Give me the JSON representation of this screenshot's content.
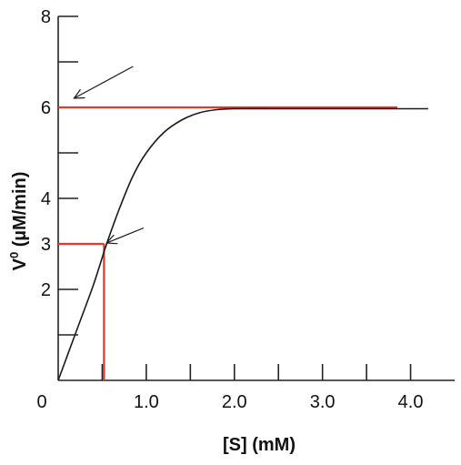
{
  "chart_data": {
    "type": "line",
    "title": "",
    "xlabel": "[S]  (mM)",
    "ylabel_main": "V",
    "ylabel_sup": "0",
    "ylabel_rest": " (µM/min)",
    "xlim": [
      0,
      4.5
    ],
    "ylim": [
      0,
      8
    ],
    "grid": false,
    "legend": "none",
    "x_ticks": [
      0,
      0.5,
      1.0,
      1.5,
      2.0,
      2.5,
      3.0,
      3.5,
      4.0
    ],
    "x_tick_labels": [
      {
        "value": 0,
        "label": "0"
      },
      {
        "value": 1.0,
        "label": "1.0"
      },
      {
        "value": 2.0,
        "label": "2.0"
      },
      {
        "value": 3.0,
        "label": "3.0"
      },
      {
        "value": 4.0,
        "label": "4.0"
      }
    ],
    "y_ticks": [
      1,
      2,
      3,
      4,
      5,
      6,
      7,
      8
    ],
    "y_tick_labels": [
      {
        "value": 2,
        "label": "2"
      },
      {
        "value": 3,
        "label": "3"
      },
      {
        "value": 4,
        "label": "4"
      },
      {
        "value": 6,
        "label": "6"
      },
      {
        "value": 8,
        "label": "8"
      }
    ],
    "series": [
      {
        "x": [
          0,
          0.2,
          0.4,
          0.55,
          0.7,
          0.85,
          1.0,
          1.2,
          1.4,
          1.6,
          1.8,
          2.0,
          2.5,
          3.0,
          3.5,
          4.0,
          4.2
        ],
        "y": [
          0,
          1.05,
          2.1,
          3.0,
          3.8,
          4.5,
          5.0,
          5.45,
          5.72,
          5.88,
          5.95,
          5.97,
          5.97,
          5.97,
          5.97,
          5.97,
          5.97
        ]
      }
    ],
    "reference_lines": [
      {
        "kind": "horizontal",
        "y": 6,
        "x_from": 0,
        "x_to": 3.85,
        "color": "#e03a2f"
      },
      {
        "kind": "horizontal",
        "y": 3,
        "x_from": 0,
        "x_to": 0.52,
        "color": "#e03a2f"
      },
      {
        "kind": "vertical",
        "x": 0.52,
        "y_from": 0,
        "y_to": 3,
        "color": "#e03a2f"
      }
    ],
    "annotations": [
      {
        "kind": "arrow",
        "target_x": 0.18,
        "target_y": 6.2,
        "from_x": 0.85,
        "from_y": 6.9
      },
      {
        "kind": "arrow",
        "target_x": 0.55,
        "target_y": 3.02,
        "from_x": 0.97,
        "from_y": 3.35
      }
    ]
  }
}
